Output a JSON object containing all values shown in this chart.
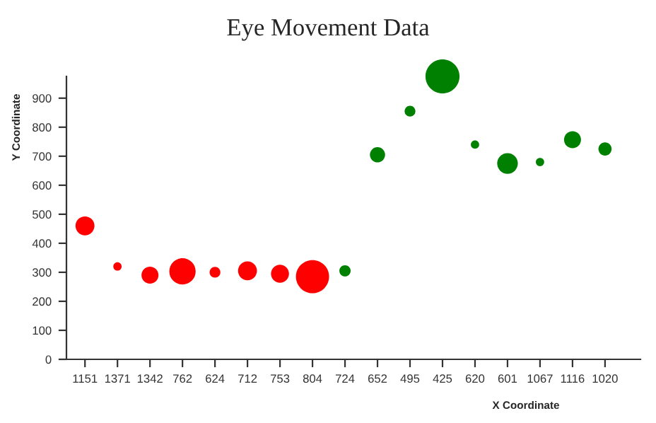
{
  "chart_data": {
    "type": "bubble",
    "title": "Eye Movement Data",
    "xlabel": "X Coordinate",
    "ylabel": "Y Coordinate",
    "categories": [
      "1151",
      "1371",
      "1342",
      "762",
      "624",
      "712",
      "753",
      "804",
      "724",
      "652",
      "495",
      "425",
      "620",
      "601",
      "1067",
      "1116",
      "1020"
    ],
    "values": [
      460,
      320,
      290,
      303,
      300,
      305,
      295,
      285,
      305,
      705,
      855,
      975,
      740,
      675,
      680,
      757,
      725
    ],
    "sizes": [
      0.31,
      0.06,
      0.25,
      0.6,
      0.1,
      0.31,
      0.28,
      0.95,
      0.11,
      0.2,
      0.1,
      1,
      0.06,
      0.37,
      0.06,
      0.25,
      0.15
    ],
    "colors": [
      "#ff0000",
      "#ff0000",
      "#ff0000",
      "#ff0000",
      "#ff0000",
      "#ff0000",
      "#ff0000",
      "#ff0000",
      "#008000",
      "#008000",
      "#008000",
      "#008000",
      "#008000",
      "#008000",
      "#008000",
      "#008000",
      "#008000"
    ],
    "ylim": [
      0,
      975
    ],
    "yticks": [
      0,
      100,
      200,
      300,
      400,
      500,
      600,
      700,
      800,
      900
    ],
    "grid": false,
    "legend": false
  }
}
